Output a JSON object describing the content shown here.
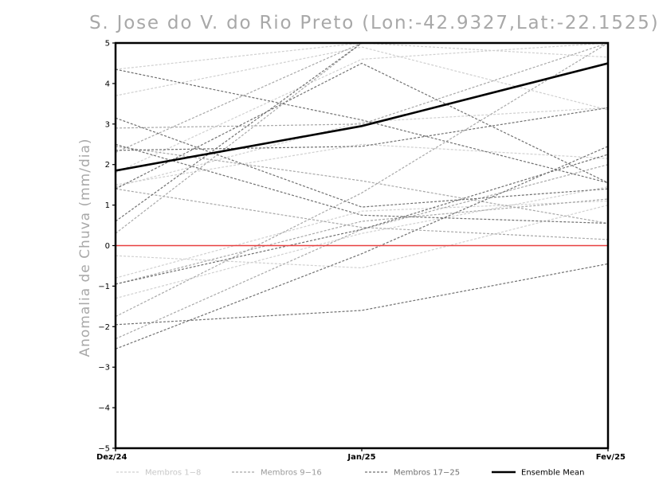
{
  "chart_data": {
    "type": "line",
    "title": "S. Jose do V. do Rio Preto (Lon:-42.9327,Lat:-22.1525)",
    "ylabel": "Anomalia de Chuva (mm/dia)",
    "xlabel": "",
    "x": [
      "Dez/24",
      "Jan/25",
      "Fev/25"
    ],
    "ylim": [
      -5,
      5
    ],
    "yticks": [
      "5",
      "4",
      "3",
      "2",
      "1",
      "0",
      "-1",
      "-2",
      "-3",
      "-4",
      "-5"
    ],
    "zero_line_color": "#e84040",
    "grid": false,
    "legend_position": "bottom",
    "groups": [
      {
        "name": "Membros 1-8",
        "color": "#d0d0d0",
        "series": [
          {
            "values": [
              4.35,
              5.0,
              4.65
            ]
          },
          {
            "values": [
              3.7,
              4.9,
              3.35
            ]
          },
          {
            "values": [
              1.8,
              4.6,
              5.0
            ]
          },
          {
            "values": [
              1.5,
              2.5,
              2.15
            ]
          },
          {
            "values": [
              -0.25,
              -0.55,
              1.0
            ]
          },
          {
            "values": [
              -0.8,
              0.85,
              1.1
            ]
          },
          {
            "values": [
              -1.3,
              0.3,
              1.45
            ]
          },
          {
            "values": [
              1.45,
              3.05,
              3.4
            ]
          }
        ]
      },
      {
        "name": "Membros 9-16",
        "color": "#a8a8a8",
        "series": [
          {
            "values": [
              2.9,
              3.0,
              5.0
            ]
          },
          {
            "values": [
              1.4,
              0.45,
              0.15
            ]
          },
          {
            "values": [
              2.3,
              5.0,
              5.0
            ]
          },
          {
            "values": [
              -1.75,
              1.3,
              5.0
            ]
          },
          {
            "values": [
              -2.3,
              0.4,
              2.0
            ]
          },
          {
            "values": [
              0.3,
              5.0,
              5.0
            ]
          },
          {
            "values": [
              2.45,
              1.6,
              0.55
            ]
          },
          {
            "values": [
              -0.95,
              0.6,
              1.15
            ]
          }
        ]
      },
      {
        "name": "Membros 17-25",
        "color": "#707070",
        "series": [
          {
            "values": [
              4.35,
              3.1,
              1.55
            ]
          },
          {
            "values": [
              3.15,
              0.95,
              1.4
            ]
          },
          {
            "values": [
              2.35,
              2.45,
              3.4
            ]
          },
          {
            "values": [
              2.5,
              0.75,
              0.55
            ]
          },
          {
            "values": [
              -1.95,
              -1.6,
              -0.45
            ]
          },
          {
            "values": [
              -2.55,
              -0.2,
              2.45
            ]
          },
          {
            "values": [
              0.6,
              5.0,
              5.0
            ]
          },
          {
            "values": [
              1.4,
              4.5,
              1.55
            ]
          },
          {
            "values": [
              -0.95,
              0.4,
              2.25
            ]
          }
        ]
      }
    ],
    "ensemble_mean": {
      "name": "Ensemble Mean",
      "color": "#000000",
      "values": [
        1.85,
        2.95,
        4.5
      ]
    },
    "legend": [
      {
        "label": "Membros 1-8",
        "color": "#d0d0d0",
        "text_color": "#c8c8c8",
        "style": "dashed"
      },
      {
        "label": "Membros 9-16",
        "color": "#a8a8a8",
        "text_color": "#9a9a9a",
        "style": "dashed"
      },
      {
        "label": "Membros 17-25",
        "color": "#707070",
        "text_color": "#707070",
        "style": "dashed"
      },
      {
        "label": "Ensemble Mean",
        "color": "#000000",
        "text_color": "#000000",
        "style": "solid"
      }
    ]
  }
}
